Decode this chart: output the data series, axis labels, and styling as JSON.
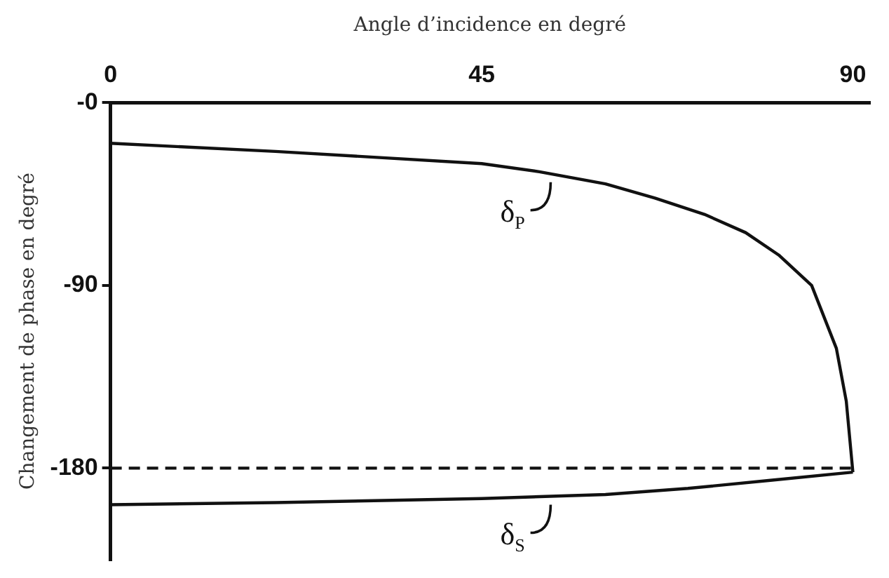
{
  "chart_data": {
    "type": "line",
    "xlabel": "Angle d’incidence en degré",
    "ylabel": "Changement de phase en degré",
    "xlim": [
      0,
      92
    ],
    "xticks": [
      0,
      45,
      90
    ],
    "ylim": [
      -225,
      0
    ],
    "yticks": [
      {
        "value": 0,
        "label": "-0"
      },
      -90,
      -180
    ],
    "grid": false,
    "legend": false,
    "marker": "none",
    "series": [
      {
        "color": "#111111",
        "line_style": "solid",
        "x": [
          0,
          20,
          45,
          52,
          60,
          66,
          72,
          77,
          81,
          85,
          88,
          89.2,
          90
        ],
        "values": [
          -20,
          -24,
          -30,
          -34,
          -40,
          -47,
          -55,
          -64,
          -75,
          -90,
          -121,
          -147,
          -182
        ]
      },
      {
        "color": "#111111",
        "line_style": "solid",
        "x": [
          0,
          20,
          45,
          60,
          70,
          80,
          90
        ],
        "values": [
          -198,
          -197,
          -195,
          -193,
          -190,
          -186,
          -182
        ]
      }
    ],
    "ref_lines": [
      {
        "axis": "y",
        "value": -180,
        "color": "#111111",
        "line_style": "dashed"
      }
    ],
    "annotations": [
      "δ$_{P}$",
      "δ$_{S}$"
    ]
  }
}
